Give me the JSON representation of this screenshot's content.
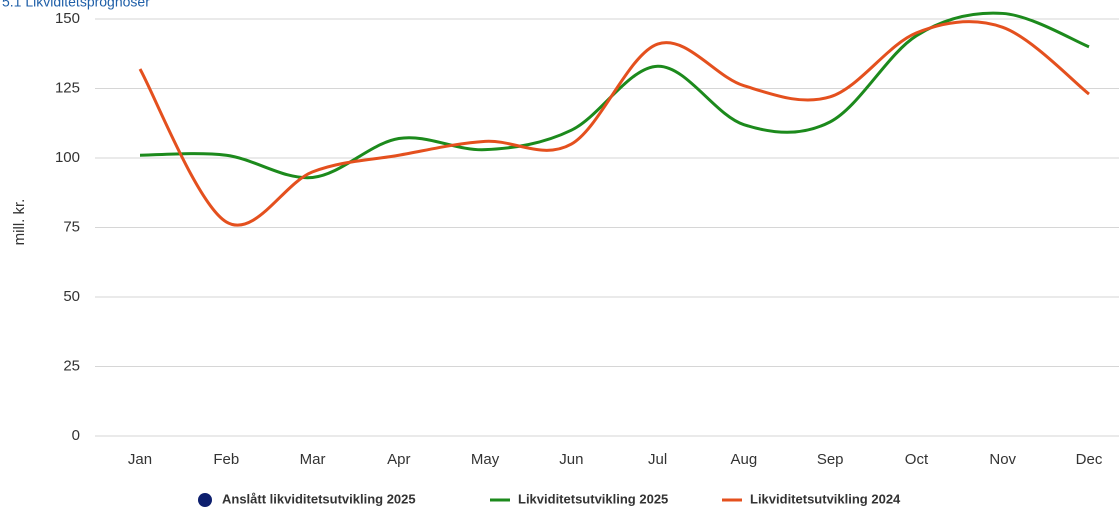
{
  "chart_data": {
    "type": "line",
    "title": "5.1 Likviditetsprognoser",
    "y_label": "mill. kr.",
    "categories": [
      "Jan",
      "Feb",
      "Mar",
      "Apr",
      "May",
      "Jun",
      "Jul",
      "Aug",
      "Sep",
      "Oct",
      "Nov",
      "Dec"
    ],
    "series": [
      {
        "name": "Anslått likviditetsutvikling 2025",
        "color": "#0d1f6e",
        "values": [
          null,
          null,
          null,
          null,
          null,
          null,
          null,
          null,
          null,
          null,
          null,
          null
        ]
      },
      {
        "name": "Likviditetsutvikling 2025",
        "color": "#1c8a1c",
        "values": [
          101,
          101,
          93,
          107,
          103,
          110,
          133,
          112,
          113,
          144,
          152,
          140
        ]
      },
      {
        "name": "Likviditetsutvikling 2024",
        "color": "#e4501e",
        "values": [
          132,
          77,
          95,
          101,
          106,
          105,
          141,
          126,
          122,
          145,
          147,
          123
        ]
      }
    ],
    "ylim": [
      0,
      150
    ],
    "yticks": [
      0,
      25,
      50,
      75,
      100,
      125,
      150
    ],
    "grid": true
  }
}
